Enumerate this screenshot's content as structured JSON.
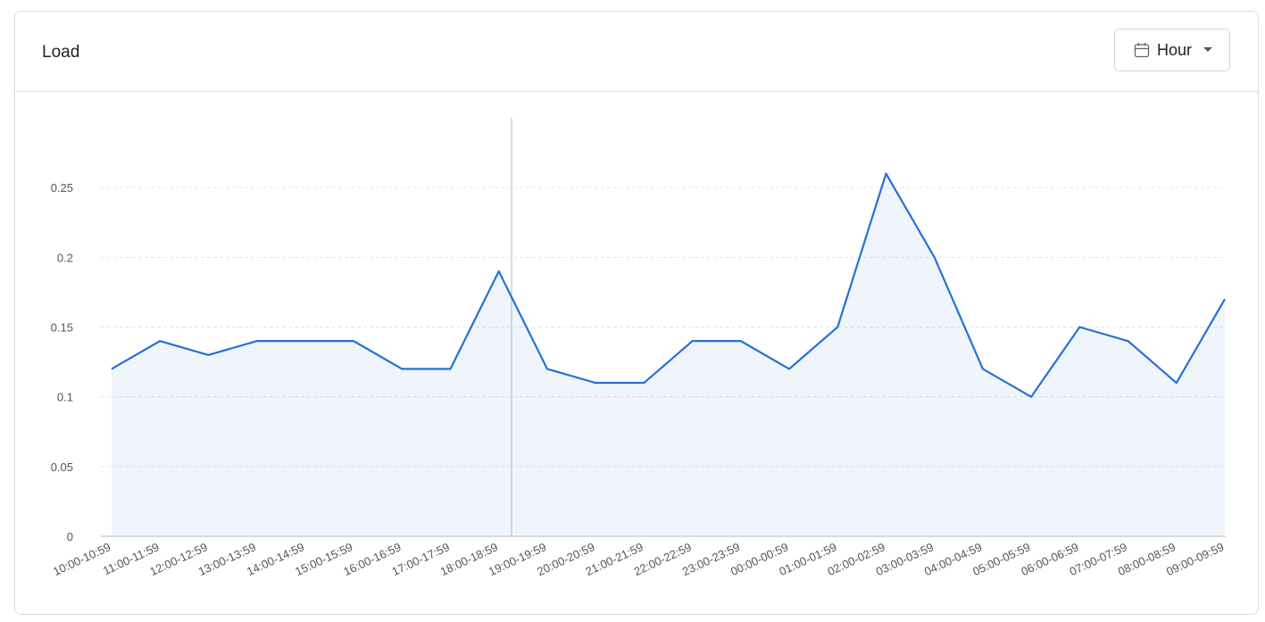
{
  "header": {
    "title": "Load",
    "range_button": "Hour"
  },
  "chart_data": {
    "type": "area",
    "categories": [
      "10:00-10:59",
      "11:00-11:59",
      "12:00-12:59",
      "13:00-13:59",
      "14:00-14:59",
      "15:00-15:59",
      "16:00-16:59",
      "17:00-17:59",
      "18:00-18:59",
      "19:00-19:59",
      "20:00-20:59",
      "21:00-21:59",
      "22:00-22:59",
      "23:00-23:59",
      "00:00-00:59",
      "01:00-01:59",
      "02:00-02:59",
      "03:00-03:59",
      "04:00-04:59",
      "05:00-05:59",
      "06:00-06:59",
      "07:00-07:59",
      "08:00-08:59",
      "09:00-09:59"
    ],
    "values": [
      0.12,
      0.14,
      0.13,
      0.14,
      0.14,
      0.14,
      0.12,
      0.12,
      0.19,
      0.12,
      0.11,
      0.11,
      0.14,
      0.14,
      0.12,
      0.15,
      0.26,
      0.2,
      0.12,
      0.1,
      0.15,
      0.14,
      0.11,
      0.17
    ],
    "color": "#2571d9",
    "ylim": [
      0,
      0.3
    ],
    "yticks": [
      0,
      0.05,
      0.1,
      0.15,
      0.2,
      0.25
    ],
    "grid": true
  }
}
